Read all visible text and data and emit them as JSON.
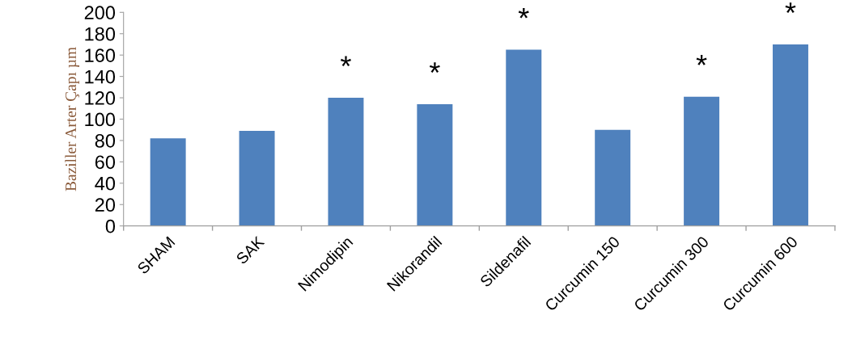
{
  "chart_data": {
    "type": "bar",
    "ylabel": "Baziller Arter Çapı µm",
    "categories": [
      "SHAM",
      "SAK",
      "Nimodipin",
      "Nikorandil",
      "Sildenafil",
      "Curcumin 150",
      "Curcumin 300",
      "Curcumin 600"
    ],
    "values": [
      82,
      89,
      120,
      114,
      165,
      90,
      121,
      170
    ],
    "color": "#4f81bd",
    "ylim": [
      0,
      200
    ],
    "yticks": [
      0,
      20,
      40,
      60,
      80,
      100,
      120,
      140,
      160,
      180,
      200
    ],
    "grid": false,
    "annotations": [
      {
        "text": "*",
        "x": "Nimodipin",
        "y": 120
      },
      {
        "text": "*",
        "x": "Nikorandil",
        "y": 114
      },
      {
        "text": "*",
        "x": "Sildenafil",
        "y": 165
      },
      {
        "text": "*",
        "x": "Curcumin 300",
        "y": 121
      },
      {
        "text": "*",
        "x": "Curcumin 600",
        "y": 170
      }
    ]
  }
}
